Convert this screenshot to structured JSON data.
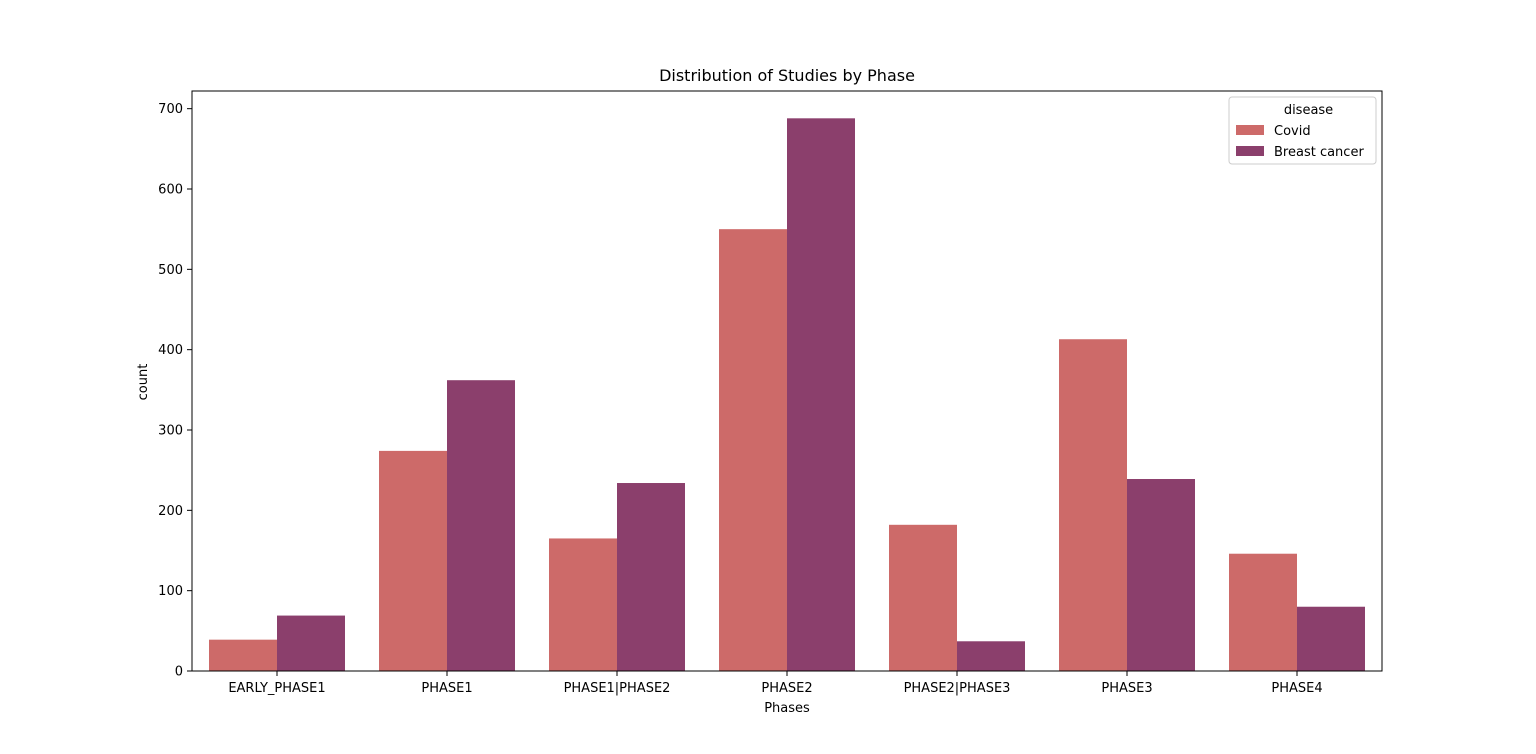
{
  "chart_data": {
    "type": "bar",
    "title": "Distribution of Studies by Phase",
    "xlabel": "Phases",
    "ylabel": "count",
    "categories": [
      "EARLY_PHASE1",
      "PHASE1",
      "PHASE1|PHASE2",
      "PHASE2",
      "PHASE2|PHASE3",
      "PHASE3",
      "PHASE4"
    ],
    "series": [
      {
        "name": "Covid",
        "color": "#cd6a69",
        "values": [
          39,
          274,
          165,
          550,
          182,
          413,
          146
        ]
      },
      {
        "name": "Breast cancer",
        "color": "#8b3f6c",
        "values": [
          69,
          362,
          234,
          688,
          37,
          239,
          80
        ]
      }
    ],
    "ylim": [
      0,
      722
    ],
    "yticks": [
      0,
      100,
      200,
      300,
      400,
      500,
      600,
      700
    ],
    "legend": {
      "title": "disease",
      "position": "top-right"
    },
    "grid": false
  }
}
